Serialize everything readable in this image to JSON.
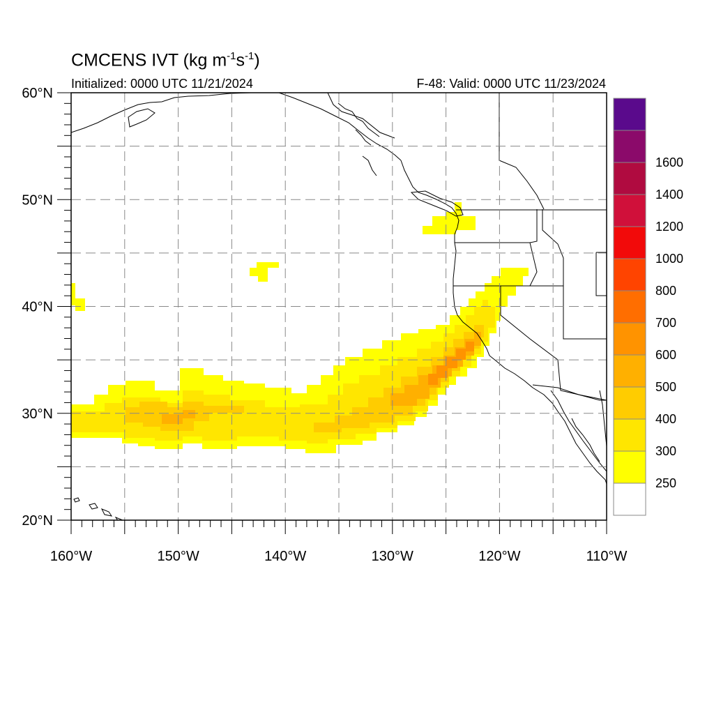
{
  "header": {
    "title_main": "CMCENS IVT (kg m",
    "title_sup1": "-1",
    "title_mid": "s",
    "title_sup2": "-1",
    "title_end": ")",
    "initialized": "Initialized: 0000 UTC 11/21/2024",
    "valid": "F-48: Valid: 0000 UTC 11/23/2024"
  },
  "map": {
    "lon_range": [
      -160,
      -110
    ],
    "lat_range": [
      20,
      60
    ],
    "lon_ticks": [
      {
        "value": -160,
        "label": "160°W"
      },
      {
        "value": -150,
        "label": "150°W"
      },
      {
        "value": -140,
        "label": "140°W"
      },
      {
        "value": -130,
        "label": "130°W"
      },
      {
        "value": -120,
        "label": "120°W"
      },
      {
        "value": -110,
        "label": "110°W"
      }
    ],
    "lat_ticks": [
      {
        "value": 60,
        "label": "60°N"
      },
      {
        "value": 50,
        "label": "50°N"
      },
      {
        "value": 40,
        "label": "40°N"
      },
      {
        "value": 30,
        "label": "30°N"
      },
      {
        "value": 20,
        "label": "20°N"
      }
    ],
    "gridlines": true
  },
  "colorbar": {
    "levels": [
      {
        "label": "",
        "color": "#ffffff"
      },
      {
        "label": "250",
        "color": "#ffff00"
      },
      {
        "label": "300",
        "color": "#ffe600"
      },
      {
        "label": "400",
        "color": "#ffcc00"
      },
      {
        "label": "500",
        "color": "#ffb000"
      },
      {
        "label": "600",
        "color": "#ff9300"
      },
      {
        "label": "700",
        "color": "#ff6e00"
      },
      {
        "label": "800",
        "color": "#ff4400"
      },
      {
        "label": "1000",
        "color": "#f20a0a"
      },
      {
        "label": "1200",
        "color": "#d0103a"
      },
      {
        "label": "1400",
        "color": "#b00b40"
      },
      {
        "label": "1600",
        "color": "#8b0a6a"
      },
      {
        "label": "",
        "color": "#5a0a8c"
      }
    ]
  }
}
